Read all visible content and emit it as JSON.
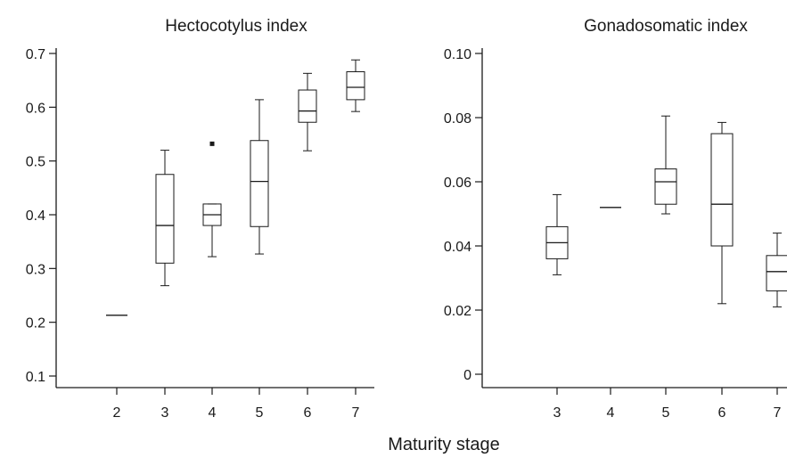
{
  "xlabel": "Maturity stage",
  "chart_data": [
    {
      "type": "box",
      "title": "Hectocotylus index",
      "xlabel": "Maturity stage",
      "ylabel": "",
      "ylim": [
        0.1,
        0.7
      ],
      "yticks": [
        "0.1",
        "0.2",
        "0.3",
        "0.4",
        "0.5",
        "0.6",
        "0.7"
      ],
      "categories": [
        "2",
        "3",
        "4",
        "5",
        "6",
        "7"
      ],
      "boxes": [
        {
          "category": "2",
          "min": 0.213,
          "q1": 0.213,
          "median": 0.213,
          "q3": 0.213,
          "max": 0.213,
          "outliers": []
        },
        {
          "category": "3",
          "min": 0.268,
          "q1": 0.31,
          "median": 0.38,
          "q3": 0.475,
          "max": 0.52,
          "outliers": []
        },
        {
          "category": "4",
          "min": 0.322,
          "q1": 0.38,
          "median": 0.4,
          "q3": 0.42,
          "max": 0.42,
          "outliers": [
            0.532
          ]
        },
        {
          "category": "5",
          "min": 0.327,
          "q1": 0.378,
          "median": 0.462,
          "q3": 0.538,
          "max": 0.614,
          "outliers": []
        },
        {
          "category": "6",
          "min": 0.519,
          "q1": 0.572,
          "median": 0.593,
          "q3": 0.632,
          "max": 0.663,
          "outliers": []
        },
        {
          "category": "7",
          "min": 0.592,
          "q1": 0.614,
          "median": 0.637,
          "q3": 0.666,
          "max": 0.688,
          "outliers": []
        }
      ]
    },
    {
      "type": "box",
      "title": "Gonadosomatic index",
      "xlabel": "Maturity stage",
      "ylabel": "",
      "ylim": [
        0,
        0.1
      ],
      "yticks": [
        "0",
        "0.02",
        "0.04",
        "0.06",
        "0.08",
        "0.10"
      ],
      "categories": [
        "3",
        "4",
        "5",
        "6",
        "7"
      ],
      "boxes": [
        {
          "category": "3",
          "min": 0.031,
          "q1": 0.036,
          "median": 0.041,
          "q3": 0.046,
          "max": 0.056,
          "outliers": []
        },
        {
          "category": "4",
          "min": 0.052,
          "q1": 0.052,
          "median": 0.052,
          "q3": 0.052,
          "max": 0.052,
          "outliers": []
        },
        {
          "category": "5",
          "min": 0.05,
          "q1": 0.053,
          "median": 0.06,
          "q3": 0.064,
          "max": 0.0805,
          "outliers": []
        },
        {
          "category": "6",
          "min": 0.022,
          "q1": 0.04,
          "median": 0.053,
          "q3": 0.075,
          "max": 0.0785,
          "outliers": []
        },
        {
          "category": "7",
          "min": 0.021,
          "q1": 0.026,
          "median": 0.032,
          "q3": 0.037,
          "max": 0.044,
          "outliers": []
        }
      ]
    }
  ]
}
